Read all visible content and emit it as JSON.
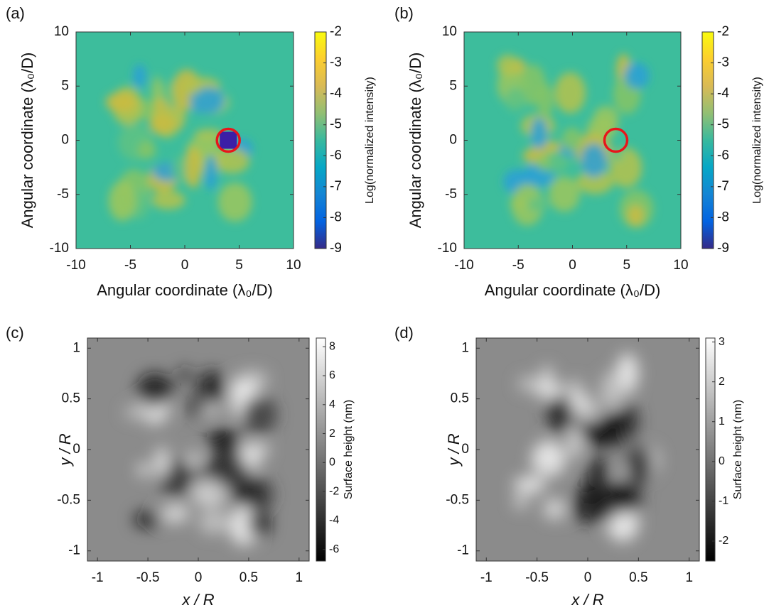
{
  "chart_data": [
    {
      "type": "heatmap",
      "panel": "(a)",
      "xlabel": "Angular coordinate (λ₀/D)",
      "ylabel": "Angular coordinate (λ₀/D)",
      "colorbar_label": "Log(normalized intensity)",
      "colormap": "parula",
      "xlim": [
        -10,
        10
      ],
      "ylim": [
        -10,
        10
      ],
      "xticks": [
        -10,
        -5,
        0,
        5,
        10
      ],
      "yticks": [
        -10,
        -5,
        0,
        5,
        10
      ],
      "clim": [
        -9,
        -2
      ],
      "cticks": [
        -9,
        -8,
        -7,
        -6,
        -5,
        -4,
        -3,
        -2
      ],
      "marker": {
        "x": 4,
        "y": 0,
        "color": "#e8161b"
      }
    },
    {
      "type": "heatmap",
      "panel": "(b)",
      "xlabel": "Angular coordinate (λ₀/D)",
      "ylabel": "Angular coordinate (λ₀/D)",
      "colorbar_label": "Log(normalized intensity)",
      "colormap": "parula",
      "xlim": [
        -10,
        10
      ],
      "ylim": [
        -10,
        10
      ],
      "xticks": [
        -10,
        -5,
        0,
        5,
        10
      ],
      "yticks": [
        -10,
        -5,
        0,
        5,
        10
      ],
      "clim": [
        -9,
        -2
      ],
      "cticks": [
        -9,
        -8,
        -7,
        -6,
        -5,
        -4,
        -3,
        -2
      ],
      "marker": {
        "x": 4,
        "y": 0,
        "color": "#e8161b"
      }
    },
    {
      "type": "heatmap",
      "panel": "(c)",
      "xlabel": "x / R",
      "ylabel": "y / R",
      "colorbar_label": "Surface height (nm)",
      "colormap": "gray",
      "xlim": [
        -1.1,
        1.1
      ],
      "ylim": [
        -1.1,
        1.1
      ],
      "xticks": [
        -1,
        -0.5,
        0,
        0.5,
        1
      ],
      "yticks": [
        -1,
        -0.5,
        0,
        0.5,
        1
      ],
      "clim": [
        -6.8,
        8.6
      ],
      "cticks": [
        -6,
        -4,
        -2,
        0,
        2,
        4,
        6,
        8
      ]
    },
    {
      "type": "heatmap",
      "panel": "(d)",
      "xlabel": "x / R",
      "ylabel": "y / R",
      "colorbar_label": "Surface height (nm)",
      "colormap": "gray",
      "xlim": [
        -1.1,
        1.1
      ],
      "ylim": [
        -1.1,
        1.1
      ],
      "xticks": [
        -1,
        -0.5,
        0,
        0.5,
        1
      ],
      "yticks": [
        -1,
        -0.5,
        0,
        0.5,
        1
      ],
      "clim": [
        -2.5,
        3.1
      ],
      "cticks": [
        -2,
        -1,
        0,
        1,
        2,
        3
      ]
    }
  ]
}
